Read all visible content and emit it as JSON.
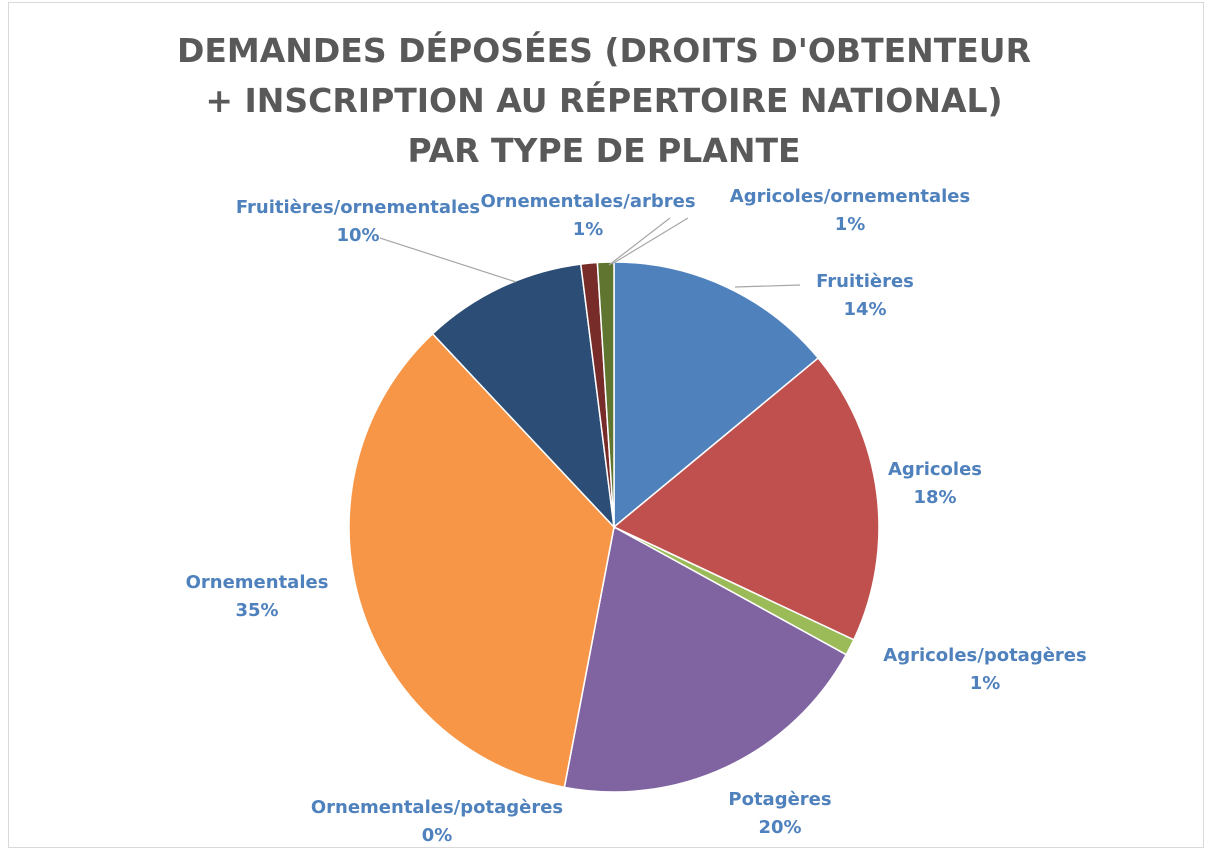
{
  "chart_data": {
    "type": "pie",
    "title": "DEMANDES DÉPOSÉES (DROITS D'OBTENTEUR + INSCRIPTION AU RÉPERTOIRE NATIONAL) PAR TYPE DE PLANTE",
    "categories": [
      "Fruitières",
      "Agricoles",
      "Agricoles/potagères",
      "Potagères",
      "Ornementales/potagères",
      "Ornementales",
      "Fruitières/ornementales",
      "Ornementales/arbres",
      "Agricoles/ornementales"
    ],
    "values": [
      14,
      18,
      1,
      20,
      0,
      35,
      10,
      1,
      1
    ],
    "value_labels": [
      "14%",
      "18%",
      "1%",
      "20%",
      "0%",
      "35%",
      "10%",
      "1%",
      "1%"
    ],
    "colors": [
      "#4f81bd",
      "#c0504d",
      "#9bbb59",
      "#8064a2",
      "#4bacc6",
      "#f79646",
      "#2c4d75",
      "#772c2a",
      "#5f7530"
    ]
  }
}
